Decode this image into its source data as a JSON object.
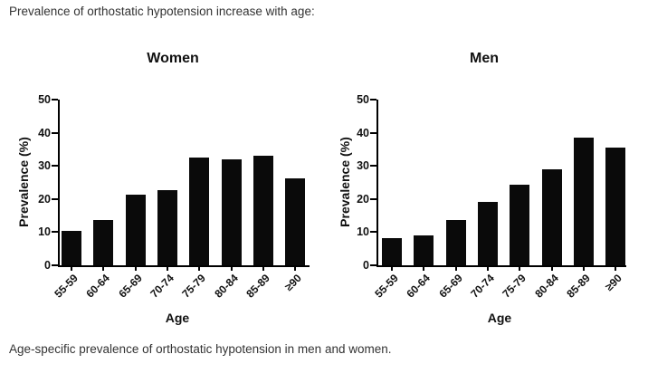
{
  "page": {
    "title": "Prevalence of orthostatic hypotension increase with age:",
    "caption": "Age-specific prevalence of orthostatic hypotension in men and women."
  },
  "chart_data": [
    {
      "type": "bar",
      "title": "Women",
      "categories": [
        "55-59",
        "60-64",
        "65-69",
        "70-74",
        "75-79",
        "80-84",
        "85-89",
        "≥90"
      ],
      "values": [
        10.4,
        13.6,
        21.2,
        22.7,
        32.5,
        32.1,
        33.1,
        26.2
      ],
      "xlabel": "Age",
      "ylabel": "Prevalence (%)",
      "ylim": [
        0,
        50
      ],
      "yticks": [
        0,
        10,
        20,
        30,
        40,
        50
      ],
      "bar_color": "#0a0a0a",
      "grid": false,
      "legend": false
    },
    {
      "type": "bar",
      "title": "Men",
      "categories": [
        "55-59",
        "60-64",
        "65-69",
        "70-74",
        "75-79",
        "80-84",
        "85-89",
        "≥90"
      ],
      "values": [
        8.1,
        8.9,
        13.6,
        19.1,
        24.2,
        29.1,
        38.4,
        35.6
      ],
      "xlabel": "Age",
      "ylabel": "Prevalence (%)",
      "ylim": [
        0,
        50
      ],
      "yticks": [
        0,
        10,
        20,
        30,
        40,
        50
      ],
      "bar_color": "#0a0a0a",
      "grid": false,
      "legend": false
    }
  ]
}
